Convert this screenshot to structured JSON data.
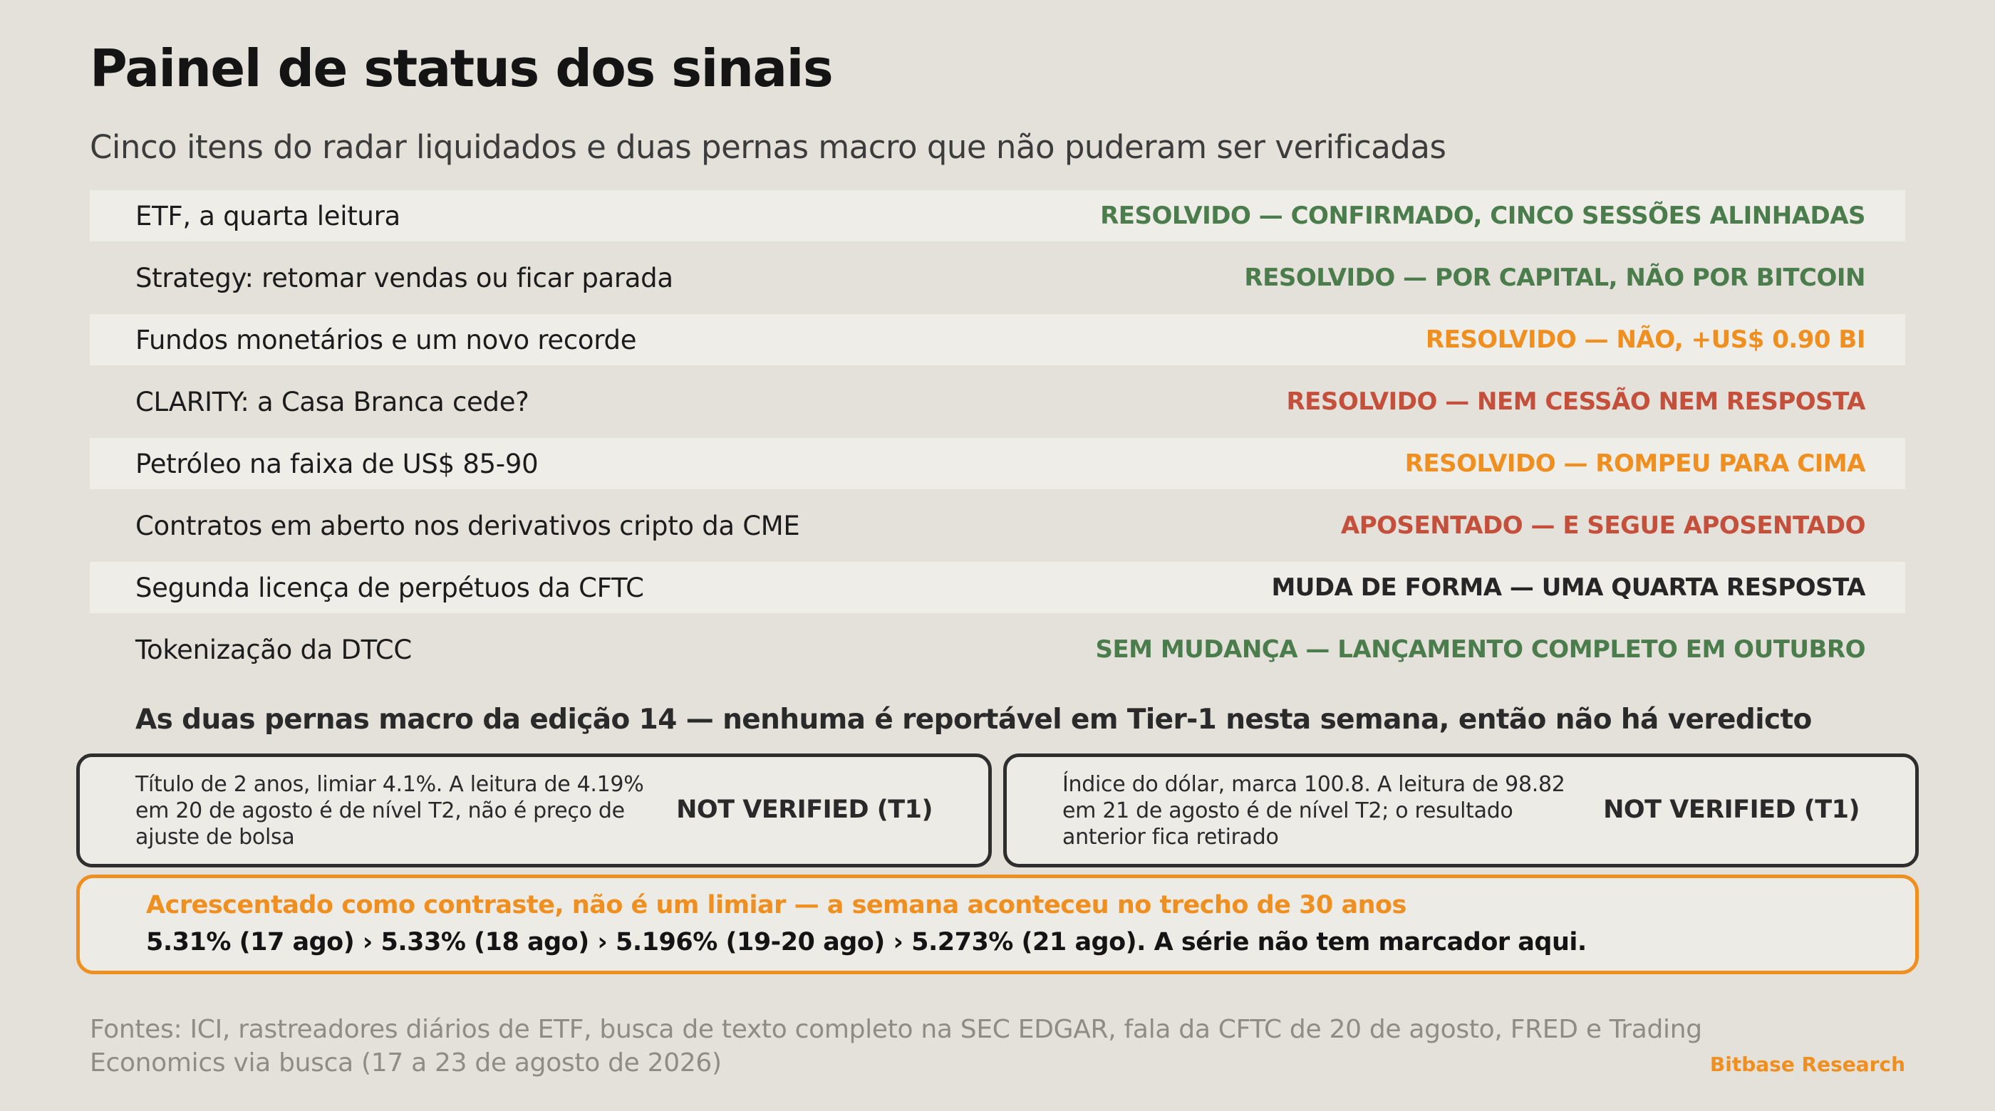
{
  "title": "Painel de status dos sinais",
  "subtitle": "Cinco itens do radar liquidados e duas pernas macro que não puderam ser verificadas",
  "rows": [
    {
      "label": "ETF, a quarta leitura",
      "status": "RESOLVIDO — CONFIRMADO, CINCO SESSÕES ALINHADAS",
      "status_color": "#4a7c4c"
    },
    {
      "label": "Strategy: retomar vendas ou ficar parada",
      "status": "RESOLVIDO — POR CAPITAL, NÃO POR BITCOIN",
      "status_color": "#4a7c4c"
    },
    {
      "label": "Fundos monetários e um novo recorde",
      "status": "RESOLVIDO — NÃO, +US$ 0.90 BI",
      "status_color": "#ef8f1f"
    },
    {
      "label": "CLARITY: a Casa Branca cede?",
      "status": "RESOLVIDO — NEM CESSÃO NEM RESPOSTA",
      "status_color": "#c4503c"
    },
    {
      "label": "Petróleo na faixa de US$ 85-90",
      "status": "RESOLVIDO — ROMPEU PARA CIMA",
      "status_color": "#ef8f1f"
    },
    {
      "label": "Contratos em aberto nos derivativos cripto da CME",
      "status": "APOSENTADO — E SEGUE APOSENTADO",
      "status_color": "#c4503c"
    },
    {
      "label": "Segunda licença de perpétuos da CFTC",
      "status": "MUDA DE FORMA — UMA QUARTA RESPOSTA",
      "status_color": "#262626"
    },
    {
      "label": "Tokenização da DTCC",
      "status": "SEM MUDANÇA — LANÇAMENTO COMPLETO EM OUTUBRO",
      "status_color": "#4a7c4c"
    }
  ],
  "macro": {
    "heading": "As duas pernas macro da edição 14 — nenhuma é reportável em Tier-1 nesta semana, então não há veredicto",
    "left": {
      "text": "Título de 2 anos, limiar 4.1%. A leitura de 4.19% em 20 de agosto é de nível T2, não é preço de ajuste de bolsa",
      "verdict": "NOT VERIFIED (T1)"
    },
    "right": {
      "text": "Índice do dólar, marca 100.8. A leitura de 98.82 em 21 de agosto é de nível T2; o resultado anterior fica retirado",
      "verdict": "NOT VERIFIED (T1)"
    }
  },
  "contrast": {
    "heading": "Acrescentado como contraste, não é um limiar — a semana aconteceu no trecho de 30 anos",
    "body": "5.31% (17 ago) › 5.33% (18 ago) › 5.196% (19-20 ago) › 5.273% (21 ago). A série não tem marcador aqui."
  },
  "footer": {
    "sources": "Fontes: ICI, rastreadores diários de ETF, busca de texto completo na SEC EDGAR, fala da CFTC de 20 de agosto, FRED e Trading Economics via busca (17 a 23 de agosto de 2026)",
    "brand": "Bitbase Research"
  },
  "colors": {
    "background": "#e4e0da",
    "green": "#4a7c4c",
    "orange": "#ef8f1f",
    "red": "#c4503c",
    "dark": "#262626"
  }
}
